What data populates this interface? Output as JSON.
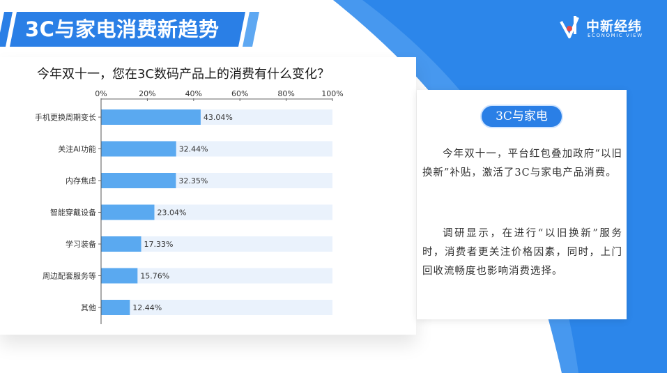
{
  "header": {
    "title": "3C与家电消费新趋势"
  },
  "logo": {
    "name_cn": "中新经纬",
    "name_en": "ECONOMIC VIEW"
  },
  "colors": {
    "accent_blue": "#2a7fe6",
    "bar_blue": "#5aa9f0",
    "bar_track": "#eaf2fc",
    "background_blue": "#2c86ea"
  },
  "chart_data": {
    "type": "bar",
    "orientation": "horizontal",
    "title": "今年双十一，您在3C数码产品上的消费有什么变化？",
    "categories": [
      "手机更换周期变长",
      "关注AI功能",
      "内存焦虑",
      "智能穿戴设备",
      "学习装备",
      "周边配套服务等",
      "其他"
    ],
    "values": [
      43.04,
      32.44,
      32.35,
      23.04,
      17.33,
      15.76,
      12.44
    ],
    "value_labels": [
      "43.04%",
      "32.44%",
      "32.35%",
      "23.04%",
      "17.33%",
      "15.76%",
      "12.44%"
    ],
    "xlim": [
      0,
      100
    ],
    "xticks": [
      "0%",
      "20%",
      "40%",
      "60%",
      "80%",
      "100%"
    ],
    "xaxis_position": "top",
    "grid": false,
    "legend": "none"
  },
  "side_panel": {
    "tag": "3C与家电",
    "paragraphs": [
      "今年双十一，平台红包叠加政府“以旧换新”补贴，激活了3C与家电产品消费。",
      "调研显示，在进行“以旧换新”服务时，消费者更关注价格因素，同时，上门回收流畅度也影响消费选择。"
    ]
  }
}
